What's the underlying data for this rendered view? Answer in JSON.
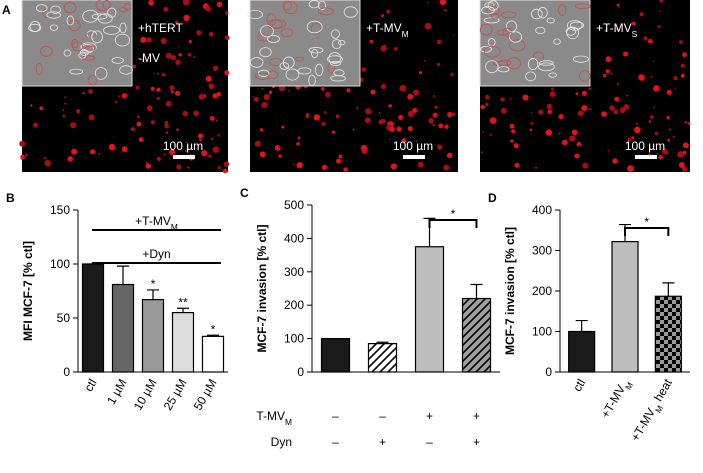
{
  "images": {
    "panel": "A",
    "items": [
      {
        "label": [
          "+hTERT",
          "-MV"
        ],
        "scale_bar": "100 µm"
      },
      {
        "label": [
          [
            {
              "text": "+T-MV"
            },
            {
              "text": "M",
              "sub": true
            }
          ]
        ],
        "scale_bar": "100 µm"
      },
      {
        "label": [
          [
            {
              "text": "+T-MV"
            },
            {
              "text": "S",
              "sub": true
            }
          ]
        ],
        "scale_bar": "100 µm"
      }
    ]
  },
  "chart_data": [
    {
      "type": "bar",
      "panel": "B",
      "y_label": "MFI MCF-7 [% ctl]",
      "categories": [
        "ctl",
        "1 µM",
        "10 µM",
        "25 µM",
        "50 µM"
      ],
      "values": [
        100,
        81,
        67,
        55,
        33
      ],
      "errors": [
        0,
        17,
        9,
        4,
        1
      ],
      "colors": [
        "#1a1a1a",
        "#666666",
        "#9a9a9a",
        "#dcdcdc",
        "#ffffff"
      ],
      "patterns": [
        "solid",
        "solid",
        "solid",
        "solid",
        "solid"
      ],
      "significance": [
        null,
        null,
        "*",
        "**",
        "*"
      ],
      "brackets": [
        {
          "label": [
            {
              "text": "+T-MV"
            },
            {
              "text": "M",
              "sub": true
            }
          ]
        },
        {
          "label": "+Dyn"
        }
      ],
      "ylim": [
        0,
        150
      ],
      "yticks": [
        0,
        50,
        100,
        150
      ]
    },
    {
      "type": "bar",
      "panel": "C",
      "y_label": "MCF-7 invasion [% ctl]",
      "values": [
        100,
        85,
        375,
        220
      ],
      "errors": [
        0,
        4,
        85,
        42
      ],
      "colors": [
        "#1a1a1a",
        "#ffffff",
        "#bdbdbd",
        "#a0a0a0"
      ],
      "patterns": [
        "solid",
        "hatch",
        "solid",
        "hatch"
      ],
      "conditions": [
        {
          "name": [
            {
              "text": "T-MV"
            },
            {
              "text": "M",
              "sub": true
            }
          ],
          "values": [
            "–",
            "–",
            "+",
            "+"
          ]
        },
        {
          "name": "Dyn",
          "values": [
            "–",
            "+",
            "–",
            "+"
          ]
        }
      ],
      "brackets": [
        {
          "label": "*"
        }
      ],
      "ylim": [
        0,
        500
      ],
      "yticks": [
        0,
        100,
        200,
        300,
        400,
        500
      ]
    },
    {
      "type": "bar",
      "panel": "D",
      "y_label": "MCF-7 invasion [% ctl]",
      "categories": [
        "ctl",
        [
          {
            "text": "+T-MV"
          },
          {
            "text": "M",
            "sub": true
          }
        ],
        [
          {
            "text": "+T-MV"
          },
          {
            "text": "M",
            "sub": true
          },
          {
            "text": " heat"
          }
        ]
      ],
      "values": [
        100,
        322,
        187
      ],
      "errors": [
        27,
        42,
        33
      ],
      "colors": [
        "#1a1a1a",
        "#bdbdbd",
        "#9a9a9a"
      ],
      "patterns": [
        "solid",
        "solid",
        "checker"
      ],
      "brackets": [
        {
          "label": "*"
        }
      ],
      "ylim": [
        0,
        400
      ],
      "yticks": [
        0,
        100,
        200,
        300,
        400
      ]
    }
  ]
}
